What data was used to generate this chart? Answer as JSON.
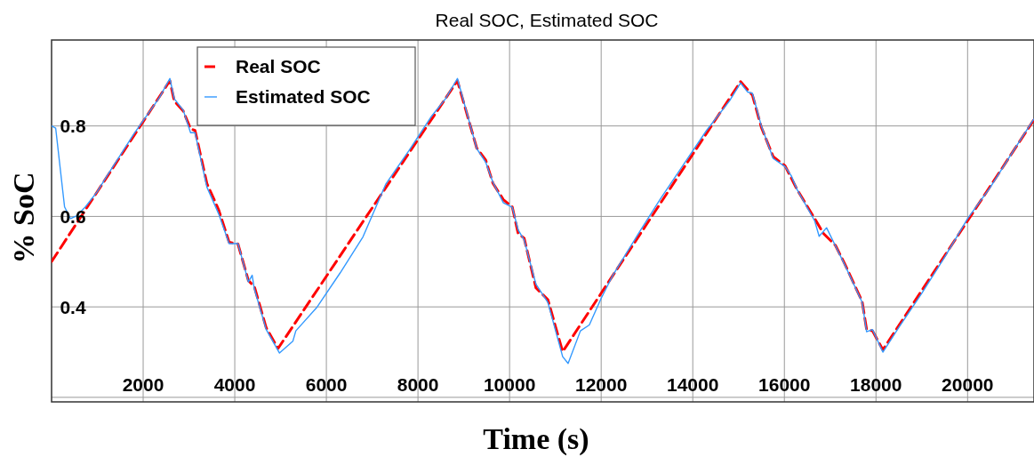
{
  "chart_data": {
    "type": "line",
    "title": "Real SOC, Estimated SOC",
    "xlabel": "Time (s)",
    "ylabel": "% SoC",
    "xlim": [
      0,
      21450
    ],
    "xticks": [
      2000,
      4000,
      6000,
      8000,
      10000,
      12000,
      14000,
      16000,
      18000,
      20000
    ],
    "ylim": [
      0.19,
      0.99
    ],
    "yticks": [
      {
        "value": 0.2,
        "label": null
      },
      0.4,
      0.6,
      0.8
    ],
    "grid": true,
    "legend": "top left",
    "series": [
      {
        "name": "Real SOC",
        "color": "#ff0000",
        "line_style": "dashed",
        "x": [
          0,
          2583,
          2680,
          2874,
          3035,
          3133,
          3391,
          3651,
          3876,
          4070,
          4298,
          4427,
          4686,
          4944,
          8861,
          9283,
          9477,
          9638,
          9865,
          10059,
          10188,
          10318,
          10576,
          10836,
          11159,
          15043,
          15303,
          15497,
          15756,
          16014,
          16274,
          16662,
          16856,
          17115,
          17309,
          17698,
          17795,
          17924,
          18150,
          21443
        ],
        "values": [
          0.5,
          0.9,
          0.855,
          0.833,
          0.794,
          0.79,
          0.673,
          0.614,
          0.543,
          0.539,
          0.458,
          0.445,
          0.354,
          0.308,
          0.9,
          0.751,
          0.725,
          0.673,
          0.637,
          0.621,
          0.562,
          0.552,
          0.442,
          0.416,
          0.301,
          0.898,
          0.868,
          0.797,
          0.732,
          0.712,
          0.66,
          0.595,
          0.562,
          0.536,
          0.497,
          0.412,
          0.35,
          0.347,
          0.305,
          0.813
        ]
      },
      {
        "name": "Estimated SOC",
        "color": "#3399ff",
        "line_style": "solid",
        "x": [
          0,
          90,
          284,
          414,
          543,
          738,
          1000,
          1200,
          1500,
          1800,
          2100,
          2350,
          2583,
          2680,
          2874,
          3035,
          3133,
          3391,
          3651,
          3876,
          4070,
          4298,
          4380,
          4427,
          4686,
          4977,
          5268,
          5333,
          5800,
          6300,
          6800,
          7300,
          7800,
          8300,
          8600,
          8861,
          9283,
          9477,
          9638,
          9865,
          10059,
          10188,
          10318,
          10576,
          10836,
          11159,
          11278,
          11547,
          11741,
          12000,
          12260,
          12800,
          13300,
          13800,
          14300,
          14800,
          15043,
          15200,
          15303,
          15497,
          15756,
          16014,
          16150,
          16274,
          16662,
          16759,
          16921,
          17115,
          17309,
          17698,
          17795,
          17924,
          18150,
          18500,
          19000,
          19500,
          20000,
          20500,
          21000,
          21443
        ],
        "values": [
          0.8,
          0.795,
          0.621,
          0.595,
          0.601,
          0.621,
          0.655,
          0.688,
          0.735,
          0.783,
          0.826,
          0.862,
          0.905,
          0.86,
          0.835,
          0.785,
          0.785,
          0.665,
          0.605,
          0.54,
          0.54,
          0.455,
          0.47,
          0.44,
          0.35,
          0.298,
          0.324,
          0.347,
          0.4,
          0.475,
          0.555,
          0.672,
          0.745,
          0.822,
          0.86,
          0.905,
          0.75,
          0.72,
          0.675,
          0.63,
          0.62,
          0.57,
          0.548,
          0.45,
          0.41,
          0.29,
          0.275,
          0.347,
          0.36,
          0.419,
          0.471,
          0.56,
          0.64,
          0.715,
          0.79,
          0.855,
          0.895,
          0.875,
          0.872,
          0.8,
          0.728,
          0.71,
          0.69,
          0.66,
          0.59,
          0.556,
          0.575,
          0.535,
          0.495,
          0.41,
          0.345,
          0.35,
          0.3,
          0.355,
          0.43,
          0.51,
          0.595,
          0.665,
          0.745,
          0.815
        ]
      }
    ]
  }
}
